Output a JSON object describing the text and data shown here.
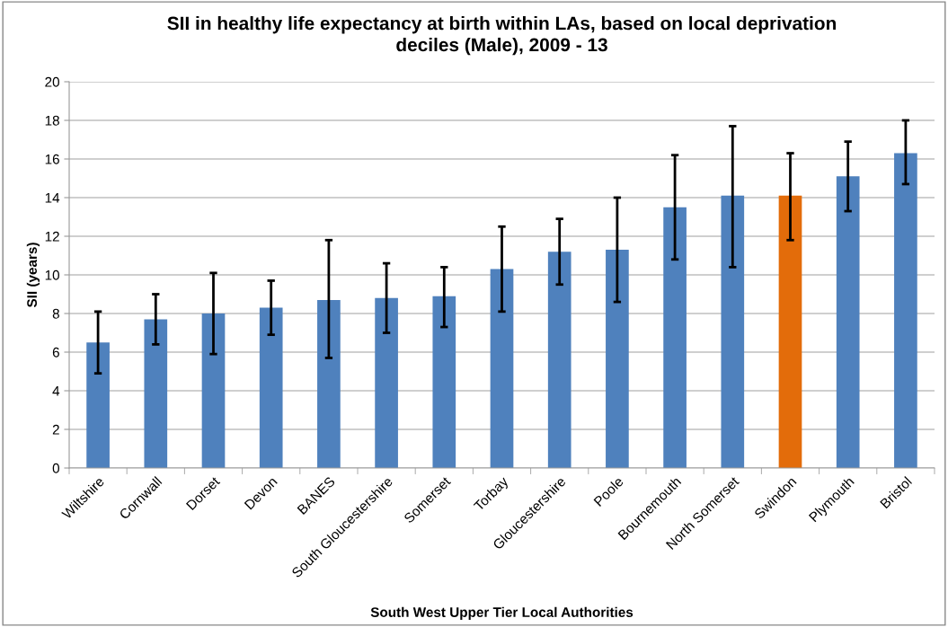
{
  "chart_data": {
    "type": "bar",
    "title": "SII in healthy life expectancy at birth within LAs, based on local deprivation\ndeciles (Male), 2009 - 13",
    "xlabel": "South West Upper Tier Local Authorities",
    "ylabel": "SII (years)",
    "categories": [
      "Wiltshire",
      "Cornwall",
      "Dorset",
      "Devon",
      "BANES",
      "South Gloucestershire",
      "Somerset",
      "Torbay",
      "Gloucestershire",
      "Poole",
      "Bournemouth",
      "North Somerset",
      "Swindon",
      "Plymouth",
      "Bristol"
    ],
    "values": [
      6.5,
      7.7,
      8.0,
      8.3,
      8.7,
      8.8,
      8.9,
      10.3,
      11.2,
      11.3,
      13.5,
      14.1,
      14.1,
      15.1,
      16.3
    ],
    "errors": [
      [
        4.9,
        8.1
      ],
      [
        6.4,
        9.0
      ],
      [
        5.9,
        10.1
      ],
      [
        6.9,
        9.7
      ],
      [
        5.7,
        11.8
      ],
      [
        7.0,
        10.6
      ],
      [
        7.3,
        10.4
      ],
      [
        8.1,
        12.5
      ],
      [
        9.5,
        12.9
      ],
      [
        8.6,
        14.0
      ],
      [
        10.8,
        16.2
      ],
      [
        10.4,
        17.7
      ],
      [
        11.8,
        16.3
      ],
      [
        13.3,
        16.9
      ],
      [
        14.7,
        18.0
      ]
    ],
    "colors": [
      "#4f81bd",
      "#4f81bd",
      "#4f81bd",
      "#4f81bd",
      "#4f81bd",
      "#4f81bd",
      "#4f81bd",
      "#4f81bd",
      "#4f81bd",
      "#4f81bd",
      "#4f81bd",
      "#4f81bd",
      "#e36c0a",
      "#4f81bd",
      "#4f81bd"
    ],
    "ylim": [
      0,
      20
    ],
    "yticks": [
      0,
      2,
      4,
      6,
      8,
      10,
      12,
      14,
      16,
      18,
      20
    ],
    "grid": "y",
    "legend": false
  }
}
